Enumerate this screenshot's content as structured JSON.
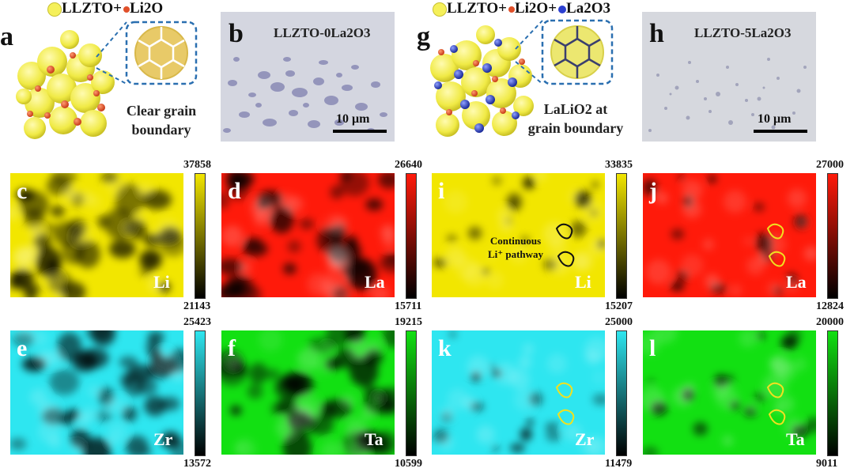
{
  "top_left": {
    "panel_a_letter": "a",
    "legend_a": [
      "LLZTO+",
      "Li2O"
    ],
    "panel_a_caption": [
      "Clear grain",
      "boundary"
    ],
    "panel_b_letter": "b",
    "panel_b_title": "LLZTO-0La2O3",
    "panel_b_scale": "10 μm"
  },
  "top_right": {
    "panel_g_letter": "g",
    "legend_g": [
      "LLZTO+",
      "Li2O+",
      "La2O3"
    ],
    "panel_g_caption": [
      "LaLiO2  at",
      "grain boundary"
    ],
    "panel_h_letter": "h",
    "panel_h_title": "LLZTO-5La2O3",
    "panel_h_scale": "10 μm"
  },
  "maps": [
    {
      "letter": "c",
      "element": "Li",
      "max": "37858",
      "min": "21143",
      "color": "#f2e600"
    },
    {
      "letter": "d",
      "element": "La",
      "max": "26640",
      "min": "15711",
      "color": "#ff1a0a"
    },
    {
      "letter": "i",
      "element": "Li",
      "max": "33835",
      "min": "15207",
      "color": "#f2e600",
      "annotation": [
        "Continuous",
        "Li⁺ pathway"
      ]
    },
    {
      "letter": "j",
      "element": "La",
      "max": "27000",
      "min": "12824",
      "color": "#ff1a0a"
    },
    {
      "letter": "e",
      "element": "Zr",
      "max": "25423",
      "min": "13572",
      "color": "#2ee6f0"
    },
    {
      "letter": "f",
      "element": "Ta",
      "max": "19215",
      "min": "10599",
      "color": "#12e012"
    },
    {
      "letter": "k",
      "element": "Zr",
      "max": "25000",
      "min": "11479",
      "color": "#2ee6f0"
    },
    {
      "letter": "l",
      "element": "Ta",
      "max": "20000",
      "min": "9011",
      "color": "#12e012"
    }
  ],
  "colors": {
    "grain_yellow": "#f5f05a",
    "grain_edge": "#c8c030",
    "li2o_red": "#e0502a",
    "la2o3_blue": "#2b3fd0",
    "dashed_blue": "#2a6fb0",
    "micrograph_bg": "#d4d6e0",
    "micrograph_spot": "#8e8fb8"
  }
}
